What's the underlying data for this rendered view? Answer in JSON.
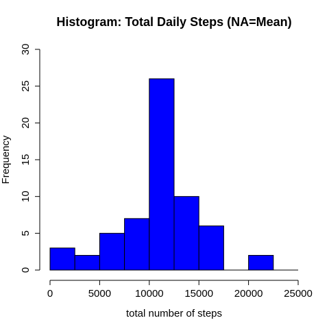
{
  "chart_data": {
    "type": "bar",
    "title": "Histogram: Total Daily Steps (NA=Mean)",
    "xlabel": "total number of steps",
    "ylabel": "Frequency",
    "bin_edges": [
      0,
      2500,
      5000,
      7500,
      10000,
      12500,
      15000,
      17500,
      20000,
      22500,
      25000
    ],
    "values": [
      3,
      2,
      5,
      7,
      26,
      10,
      6,
      0,
      2,
      0
    ],
    "xlim": [
      0,
      25000
    ],
    "ylim": [
      0,
      30
    ],
    "xticks": [
      0,
      5000,
      10000,
      15000,
      20000,
      25000
    ],
    "yticks": [
      0,
      5,
      10,
      15,
      20,
      25,
      30
    ],
    "grid": false,
    "bar_color": "#0000ff",
    "edge_color": "#000000"
  }
}
